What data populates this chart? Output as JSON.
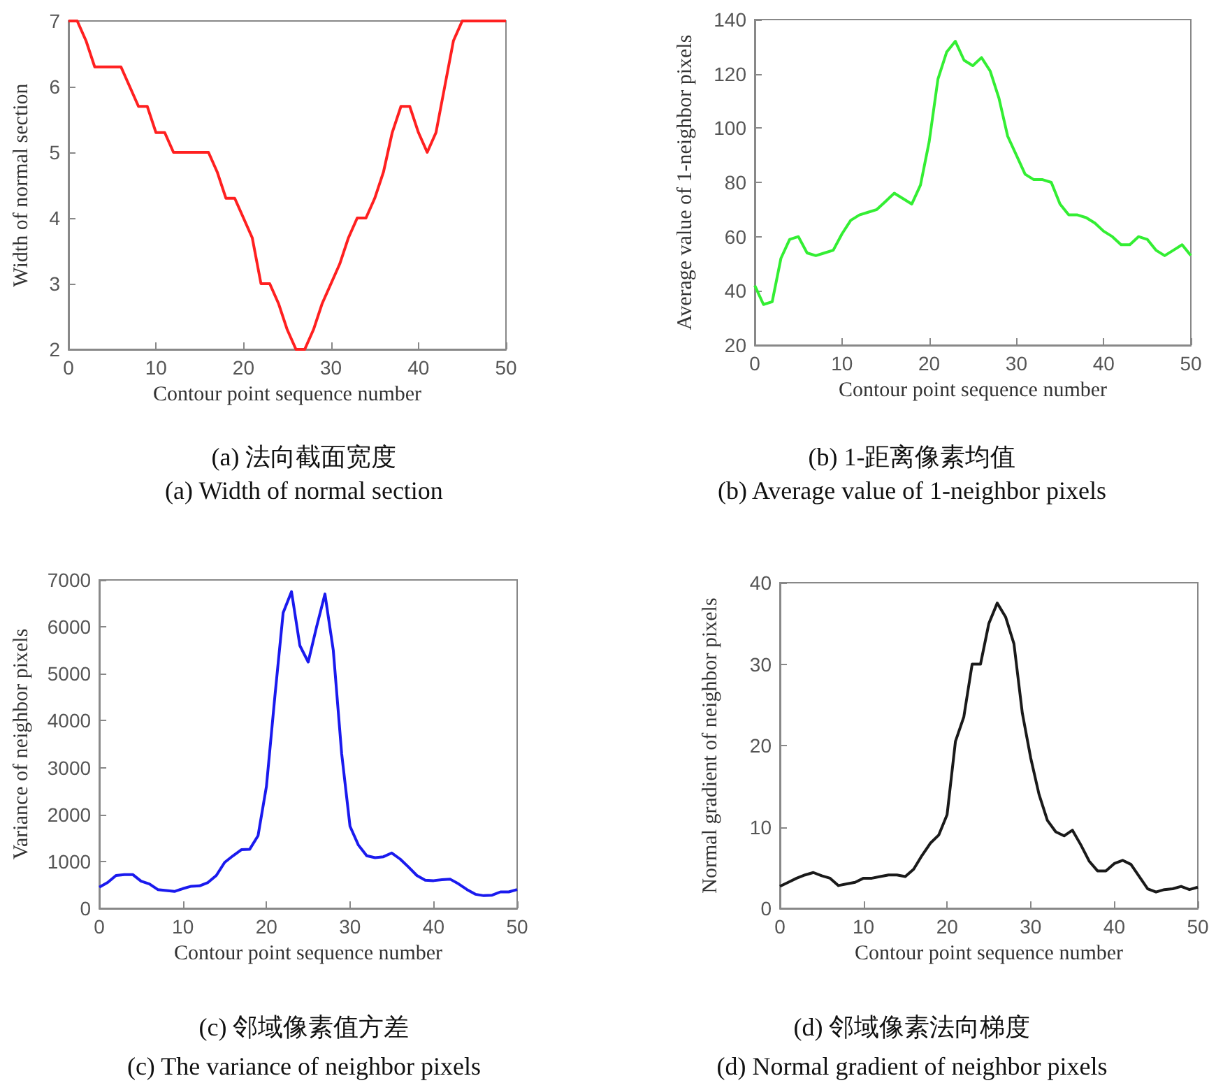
{
  "chart_data": [
    {
      "type": "line",
      "xlabel": "Contour point sequence number",
      "ylabel": "Width of normal section",
      "annotations": [
        "(a)  法向截面宽度",
        "(a) Width of normal section"
      ],
      "x": [
        0,
        1,
        2,
        3,
        4,
        5,
        6,
        7,
        8,
        9,
        10,
        11,
        12,
        13,
        14,
        15,
        16,
        17,
        18,
        19,
        20,
        21,
        22,
        23,
        24,
        25,
        26,
        27,
        28,
        29,
        30,
        31,
        32,
        33,
        34,
        35,
        36,
        37,
        38,
        39,
        40,
        41,
        42,
        43,
        44,
        45,
        46,
        47,
        48,
        49,
        50
      ],
      "series": [
        {
          "color": "#ff2020",
          "values": [
            7,
            7,
            6.7,
            6.3,
            6.3,
            6.3,
            6.3,
            6,
            5.7,
            5.7,
            5.3,
            5.3,
            5,
            5,
            5,
            5,
            5,
            4.7,
            4.3,
            4.3,
            4,
            3.7,
            3,
            3,
            2.7,
            2.3,
            2,
            2,
            2.3,
            2.7,
            3,
            3.3,
            3.7,
            4,
            4,
            4.3,
            4.7,
            5.3,
            5.7,
            5.7,
            5.3,
            5,
            5.3,
            6,
            6.7,
            7,
            7,
            7,
            7,
            7,
            7
          ]
        }
      ],
      "xlim": [
        0,
        50
      ],
      "xticks": [
        0,
        10,
        20,
        30,
        40,
        50
      ],
      "ylim": [
        2,
        7
      ],
      "yticks": [
        2,
        3,
        4,
        5,
        6,
        7
      ],
      "grid": false,
      "marker": "none",
      "line_style": "solid"
    },
    {
      "type": "line",
      "xlabel": "Contour point sequence number",
      "ylabel": "Average value of 1-neighbor pixels",
      "annotations": [
        "(b) 1-距离像素均值",
        "(b) Average value of 1-neighbor pixels"
      ],
      "x": [
        0,
        1,
        2,
        3,
        4,
        5,
        6,
        7,
        8,
        9,
        10,
        11,
        12,
        13,
        14,
        15,
        16,
        17,
        18,
        19,
        20,
        21,
        22,
        23,
        24,
        25,
        26,
        27,
        28,
        29,
        30,
        31,
        32,
        33,
        34,
        35,
        36,
        37,
        38,
        39,
        40,
        41,
        42,
        43,
        44,
        45,
        46,
        47,
        48,
        49,
        50
      ],
      "series": [
        {
          "color": "#33ee33",
          "values": [
            42,
            35,
            36,
            52,
            59,
            60,
            54,
            53,
            54,
            55,
            61,
            66,
            68,
            69,
            70,
            73,
            76,
            74,
            72,
            79,
            95,
            118,
            128,
            132,
            125,
            123,
            126,
            121,
            111,
            97,
            90,
            83,
            81,
            81,
            80,
            72,
            68,
            68,
            67,
            65,
            62,
            60,
            57,
            57,
            60,
            59,
            55,
            53,
            55,
            57,
            53
          ]
        }
      ],
      "xlim": [
        0,
        50
      ],
      "xticks": [
        0,
        10,
        20,
        30,
        40,
        50
      ],
      "ylim": [
        20,
        140
      ],
      "yticks": [
        20,
        40,
        60,
        80,
        100,
        120,
        140
      ],
      "grid": false,
      "marker": "none",
      "line_style": "solid"
    },
    {
      "type": "line",
      "xlabel": "Contour point sequence number",
      "ylabel": "Variance of neighbor pixels",
      "annotations": [
        "(c)  邻域像素值方差",
        "(c) The variance of neighbor pixels"
      ],
      "x": [
        0,
        1,
        2,
        3,
        4,
        5,
        6,
        7,
        8,
        9,
        10,
        11,
        12,
        13,
        14,
        15,
        16,
        17,
        18,
        19,
        20,
        21,
        22,
        23,
        24,
        25,
        26,
        27,
        28,
        29,
        30,
        31,
        32,
        33,
        34,
        35,
        36,
        37,
        38,
        39,
        40,
        41,
        42,
        43,
        44,
        45,
        46,
        47,
        48,
        49,
        50
      ],
      "series": [
        {
          "color": "#1a1aee",
          "values": [
            450,
            550,
            700,
            720,
            720,
            580,
            520,
            400,
            380,
            360,
            420,
            470,
            480,
            550,
            700,
            980,
            1120,
            1250,
            1260,
            1550,
            2600,
            4500,
            6300,
            6750,
            5600,
            5250,
            6000,
            6700,
            5500,
            3300,
            1750,
            1350,
            1120,
            1080,
            1100,
            1180,
            1050,
            880,
            700,
            600,
            590,
            610,
            620,
            520,
            400,
            300,
            270,
            280,
            350,
            350,
            400
          ]
        }
      ],
      "xlim": [
        0,
        50
      ],
      "xticks": [
        0,
        10,
        20,
        30,
        40,
        50
      ],
      "ylim": [
        0,
        7000
      ],
      "yticks": [
        0,
        1000,
        2000,
        3000,
        4000,
        5000,
        6000,
        7000
      ],
      "grid": false,
      "marker": "none",
      "line_style": "solid"
    },
    {
      "type": "line",
      "xlabel": "Contour point sequence number",
      "ylabel": "Normal gradient of neighbor pixels",
      "annotations": [
        "(d)  邻域像素法向梯度",
        "(d) Normal gradient of neighbor pixels"
      ],
      "x": [
        0,
        1,
        2,
        3,
        4,
        5,
        6,
        7,
        8,
        9,
        10,
        11,
        12,
        13,
        14,
        15,
        16,
        17,
        18,
        19,
        20,
        21,
        22,
        23,
        24,
        25,
        26,
        27,
        28,
        29,
        30,
        31,
        32,
        33,
        34,
        35,
        36,
        37,
        38,
        39,
        40,
        41,
        42,
        43,
        44,
        45,
        46,
        47,
        48,
        49,
        50
      ],
      "series": [
        {
          "color": "#1a1a1a",
          "values": [
            2.7,
            3.2,
            3.7,
            4.1,
            4.4,
            4,
            3.7,
            2.8,
            3,
            3.2,
            3.7,
            3.7,
            3.9,
            4.1,
            4.1,
            3.9,
            4.8,
            6.5,
            8,
            9,
            11.5,
            20.5,
            23.5,
            30,
            30,
            35,
            37.5,
            35.8,
            32.5,
            24,
            18.5,
            14,
            10.8,
            9.4,
            8.9,
            9.6,
            7.8,
            5.8,
            4.6,
            4.6,
            5.5,
            5.9,
            5.4,
            3.9,
            2.4,
            2,
            2.3,
            2.4,
            2.7,
            2.3,
            2.6
          ]
        }
      ],
      "xlim": [
        0,
        50
      ],
      "xticks": [
        0,
        10,
        20,
        30,
        40,
        50
      ],
      "ylim": [
        0,
        40
      ],
      "yticks": [
        0,
        10,
        20,
        30,
        40
      ],
      "grid": false,
      "marker": "none",
      "line_style": "solid"
    }
  ]
}
